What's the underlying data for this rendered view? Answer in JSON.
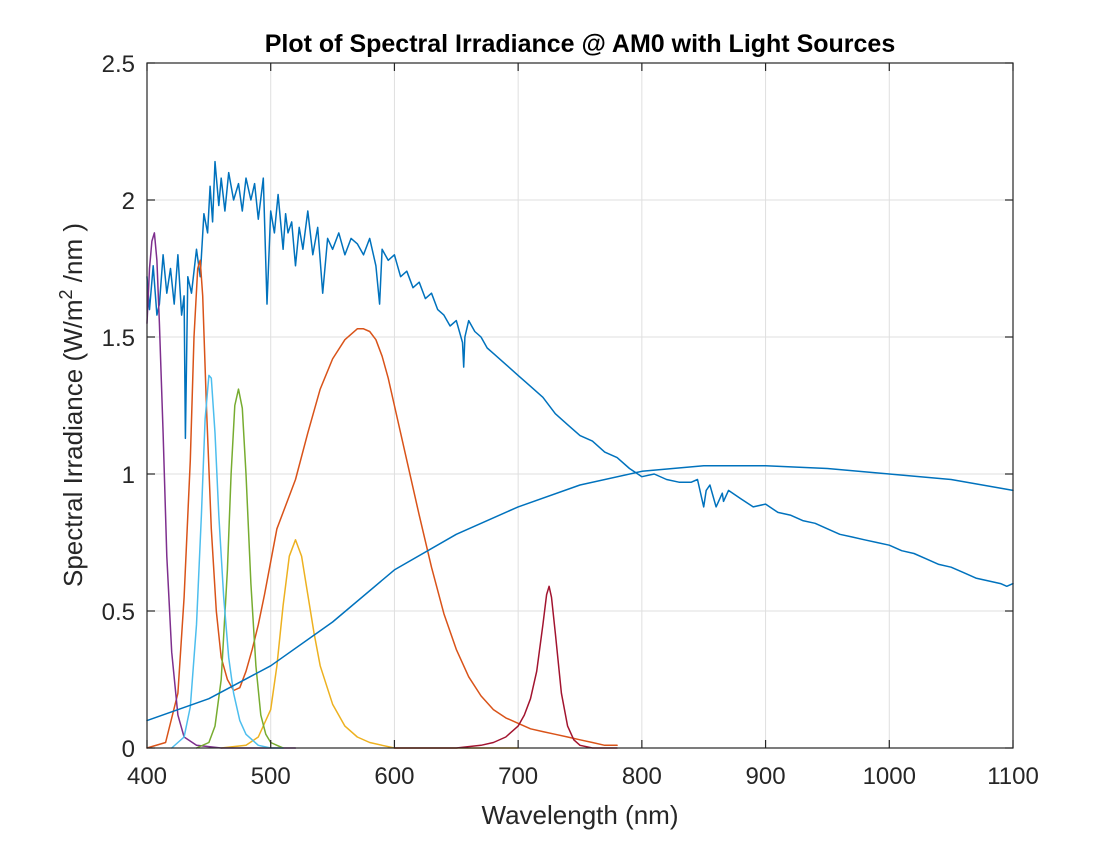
{
  "chart_data": {
    "type": "line",
    "title": "Plot of Spectral Irradiance @ AM0 with Light Sources",
    "xlabel": "Wavelength (nm)",
    "ylabel": "Spectral Irradiance (W/m² /nm )",
    "xlim": [
      400,
      1100
    ],
    "ylim": [
      0,
      2.5
    ],
    "grid": true,
    "legend": "none",
    "x_ticks": [
      "400",
      "500",
      "600",
      "700",
      "800",
      "900",
      "1000",
      "1100"
    ],
    "y_ticks": [
      "0",
      "0.5",
      "1",
      "1.5",
      "2",
      "2.5"
    ],
    "series": [
      {
        "color": "#0072BD",
        "x": [
          400,
          402,
          405,
          408,
          410,
          413,
          416,
          419,
          422,
          425,
          428,
          430,
          431,
          433,
          436,
          440,
          443,
          446,
          449,
          451,
          453,
          455,
          458,
          460,
          463,
          466,
          470,
          474,
          477,
          480,
          484,
          487,
          490,
          494,
          497,
          500,
          503,
          506,
          510,
          512,
          514,
          517,
          520,
          523,
          526,
          530,
          534,
          538,
          542,
          546,
          550,
          555,
          560,
          565,
          570,
          575,
          580,
          585,
          588,
          590,
          595,
          600,
          605,
          610,
          615,
          620,
          625,
          630,
          635,
          640,
          645,
          650,
          655,
          656,
          657,
          660,
          665,
          670,
          675,
          680,
          690,
          700,
          710,
          720,
          730,
          740,
          750,
          760,
          770,
          780,
          790,
          800,
          810,
          820,
          830,
          840,
          845,
          850,
          852,
          855,
          860,
          865,
          866,
          870,
          880,
          890,
          900,
          910,
          920,
          930,
          940,
          950,
          960,
          970,
          980,
          990,
          1000,
          1010,
          1020,
          1030,
          1040,
          1050,
          1060,
          1070,
          1080,
          1090,
          1095,
          1100
        ],
        "y": [
          1.72,
          1.6,
          1.76,
          1.58,
          1.62,
          1.8,
          1.66,
          1.75,
          1.62,
          1.8,
          1.58,
          1.65,
          1.13,
          1.72,
          1.66,
          1.82,
          1.72,
          1.95,
          1.88,
          2.05,
          1.92,
          2.14,
          1.98,
          2.08,
          1.96,
          2.1,
          2.0,
          2.06,
          1.96,
          2.08,
          2.0,
          2.06,
          1.93,
          2.08,
          1.62,
          1.96,
          1.88,
          2.02,
          1.82,
          1.95,
          1.88,
          1.92,
          1.76,
          1.9,
          1.82,
          1.96,
          1.8,
          1.9,
          1.66,
          1.86,
          1.82,
          1.88,
          1.8,
          1.86,
          1.84,
          1.8,
          1.86,
          1.76,
          1.62,
          1.82,
          1.78,
          1.8,
          1.72,
          1.74,
          1.68,
          1.7,
          1.64,
          1.66,
          1.6,
          1.58,
          1.54,
          1.56,
          1.48,
          1.39,
          1.5,
          1.56,
          1.52,
          1.5,
          1.46,
          1.44,
          1.4,
          1.36,
          1.32,
          1.28,
          1.22,
          1.18,
          1.14,
          1.12,
          1.08,
          1.06,
          1.02,
          0.99,
          1.0,
          0.98,
          0.97,
          0.97,
          0.98,
          0.88,
          0.94,
          0.96,
          0.88,
          0.93,
          0.9,
          0.94,
          0.91,
          0.88,
          0.89,
          0.86,
          0.85,
          0.83,
          0.82,
          0.8,
          0.78,
          0.77,
          0.76,
          0.75,
          0.74,
          0.72,
          0.71,
          0.69,
          0.67,
          0.66,
          0.64,
          0.62,
          0.61,
          0.6,
          0.59,
          0.6
        ]
      },
      {
        "color": "#D95319",
        "x": [
          400,
          415,
          425,
          430,
          435,
          438,
          441,
          443,
          445,
          448,
          452,
          456,
          460,
          465,
          470,
          475,
          480,
          485,
          490,
          495,
          500,
          505,
          510,
          520,
          530,
          540,
          550,
          560,
          570,
          575,
          580,
          585,
          590,
          595,
          600,
          610,
          620,
          630,
          640,
          650,
          660,
          670,
          680,
          690,
          700,
          710,
          720,
          730,
          740,
          750,
          760,
          770,
          780
        ],
        "y": [
          0.0,
          0.02,
          0.2,
          0.55,
          1.05,
          1.5,
          1.75,
          1.78,
          1.65,
          1.25,
          0.8,
          0.5,
          0.33,
          0.25,
          0.21,
          0.22,
          0.28,
          0.36,
          0.45,
          0.56,
          0.68,
          0.8,
          0.86,
          0.98,
          1.15,
          1.31,
          1.42,
          1.49,
          1.53,
          1.53,
          1.52,
          1.49,
          1.43,
          1.35,
          1.25,
          1.05,
          0.85,
          0.66,
          0.49,
          0.36,
          0.26,
          0.19,
          0.14,
          0.11,
          0.09,
          0.07,
          0.06,
          0.05,
          0.04,
          0.03,
          0.02,
          0.01,
          0.01
        ]
      },
      {
        "color": "#EDB120",
        "x": [
          460,
          480,
          490,
          500,
          505,
          510,
          515,
          520,
          525,
          530,
          535,
          540,
          550,
          560,
          570,
          580,
          590,
          600,
          620,
          650,
          700
        ],
        "y": [
          0.0,
          0.01,
          0.04,
          0.14,
          0.3,
          0.52,
          0.7,
          0.76,
          0.7,
          0.56,
          0.42,
          0.3,
          0.16,
          0.08,
          0.04,
          0.02,
          0.01,
          0.0,
          0.0,
          0.0,
          0.0
        ]
      },
      {
        "color": "#7E2F8E",
        "x": [
          400,
          402,
          404,
          406,
          408,
          410,
          413,
          416,
          420,
          425,
          430,
          440,
          460,
          500,
          520
        ],
        "y": [
          1.55,
          1.75,
          1.85,
          1.88,
          1.78,
          1.55,
          1.15,
          0.7,
          0.35,
          0.12,
          0.04,
          0.01,
          0.0,
          0.0,
          0.0
        ]
      },
      {
        "color": "#77AC30",
        "x": [
          440,
          450,
          455,
          460,
          465,
          468,
          471,
          474,
          477,
          480,
          484,
          488,
          492,
          496,
          500,
          505,
          510
        ],
        "y": [
          0.0,
          0.02,
          0.08,
          0.25,
          0.65,
          1.0,
          1.25,
          1.31,
          1.24,
          1.0,
          0.6,
          0.3,
          0.12,
          0.05,
          0.02,
          0.01,
          0.0
        ]
      },
      {
        "color": "#4DBEEE",
        "x": [
          420,
          430,
          435,
          440,
          444,
          447,
          450,
          452,
          455,
          458,
          462,
          466,
          470,
          475,
          480,
          490,
          500,
          510
        ],
        "y": [
          0.0,
          0.04,
          0.15,
          0.45,
          0.85,
          1.2,
          1.36,
          1.35,
          1.15,
          0.85,
          0.55,
          0.33,
          0.2,
          0.1,
          0.05,
          0.01,
          0.0,
          0.0
        ]
      },
      {
        "color": "#A2142F",
        "x": [
          600,
          650,
          670,
          680,
          690,
          700,
          705,
          710,
          715,
          720,
          723,
          725,
          727,
          730,
          735,
          740,
          745,
          750,
          760,
          780
        ],
        "y": [
          0.0,
          0.0,
          0.01,
          0.02,
          0.04,
          0.08,
          0.12,
          0.18,
          0.28,
          0.45,
          0.56,
          0.59,
          0.55,
          0.42,
          0.2,
          0.08,
          0.03,
          0.01,
          0.0,
          0.0
        ]
      },
      {
        "color": "#0072BD",
        "x": [
          400,
          450,
          500,
          550,
          600,
          650,
          700,
          750,
          800,
          850,
          900,
          950,
          1000,
          1050,
          1100
        ],
        "y": [
          0.1,
          0.18,
          0.3,
          0.46,
          0.65,
          0.78,
          0.88,
          0.96,
          1.01,
          1.03,
          1.03,
          1.02,
          1.0,
          0.98,
          0.94
        ]
      }
    ]
  }
}
